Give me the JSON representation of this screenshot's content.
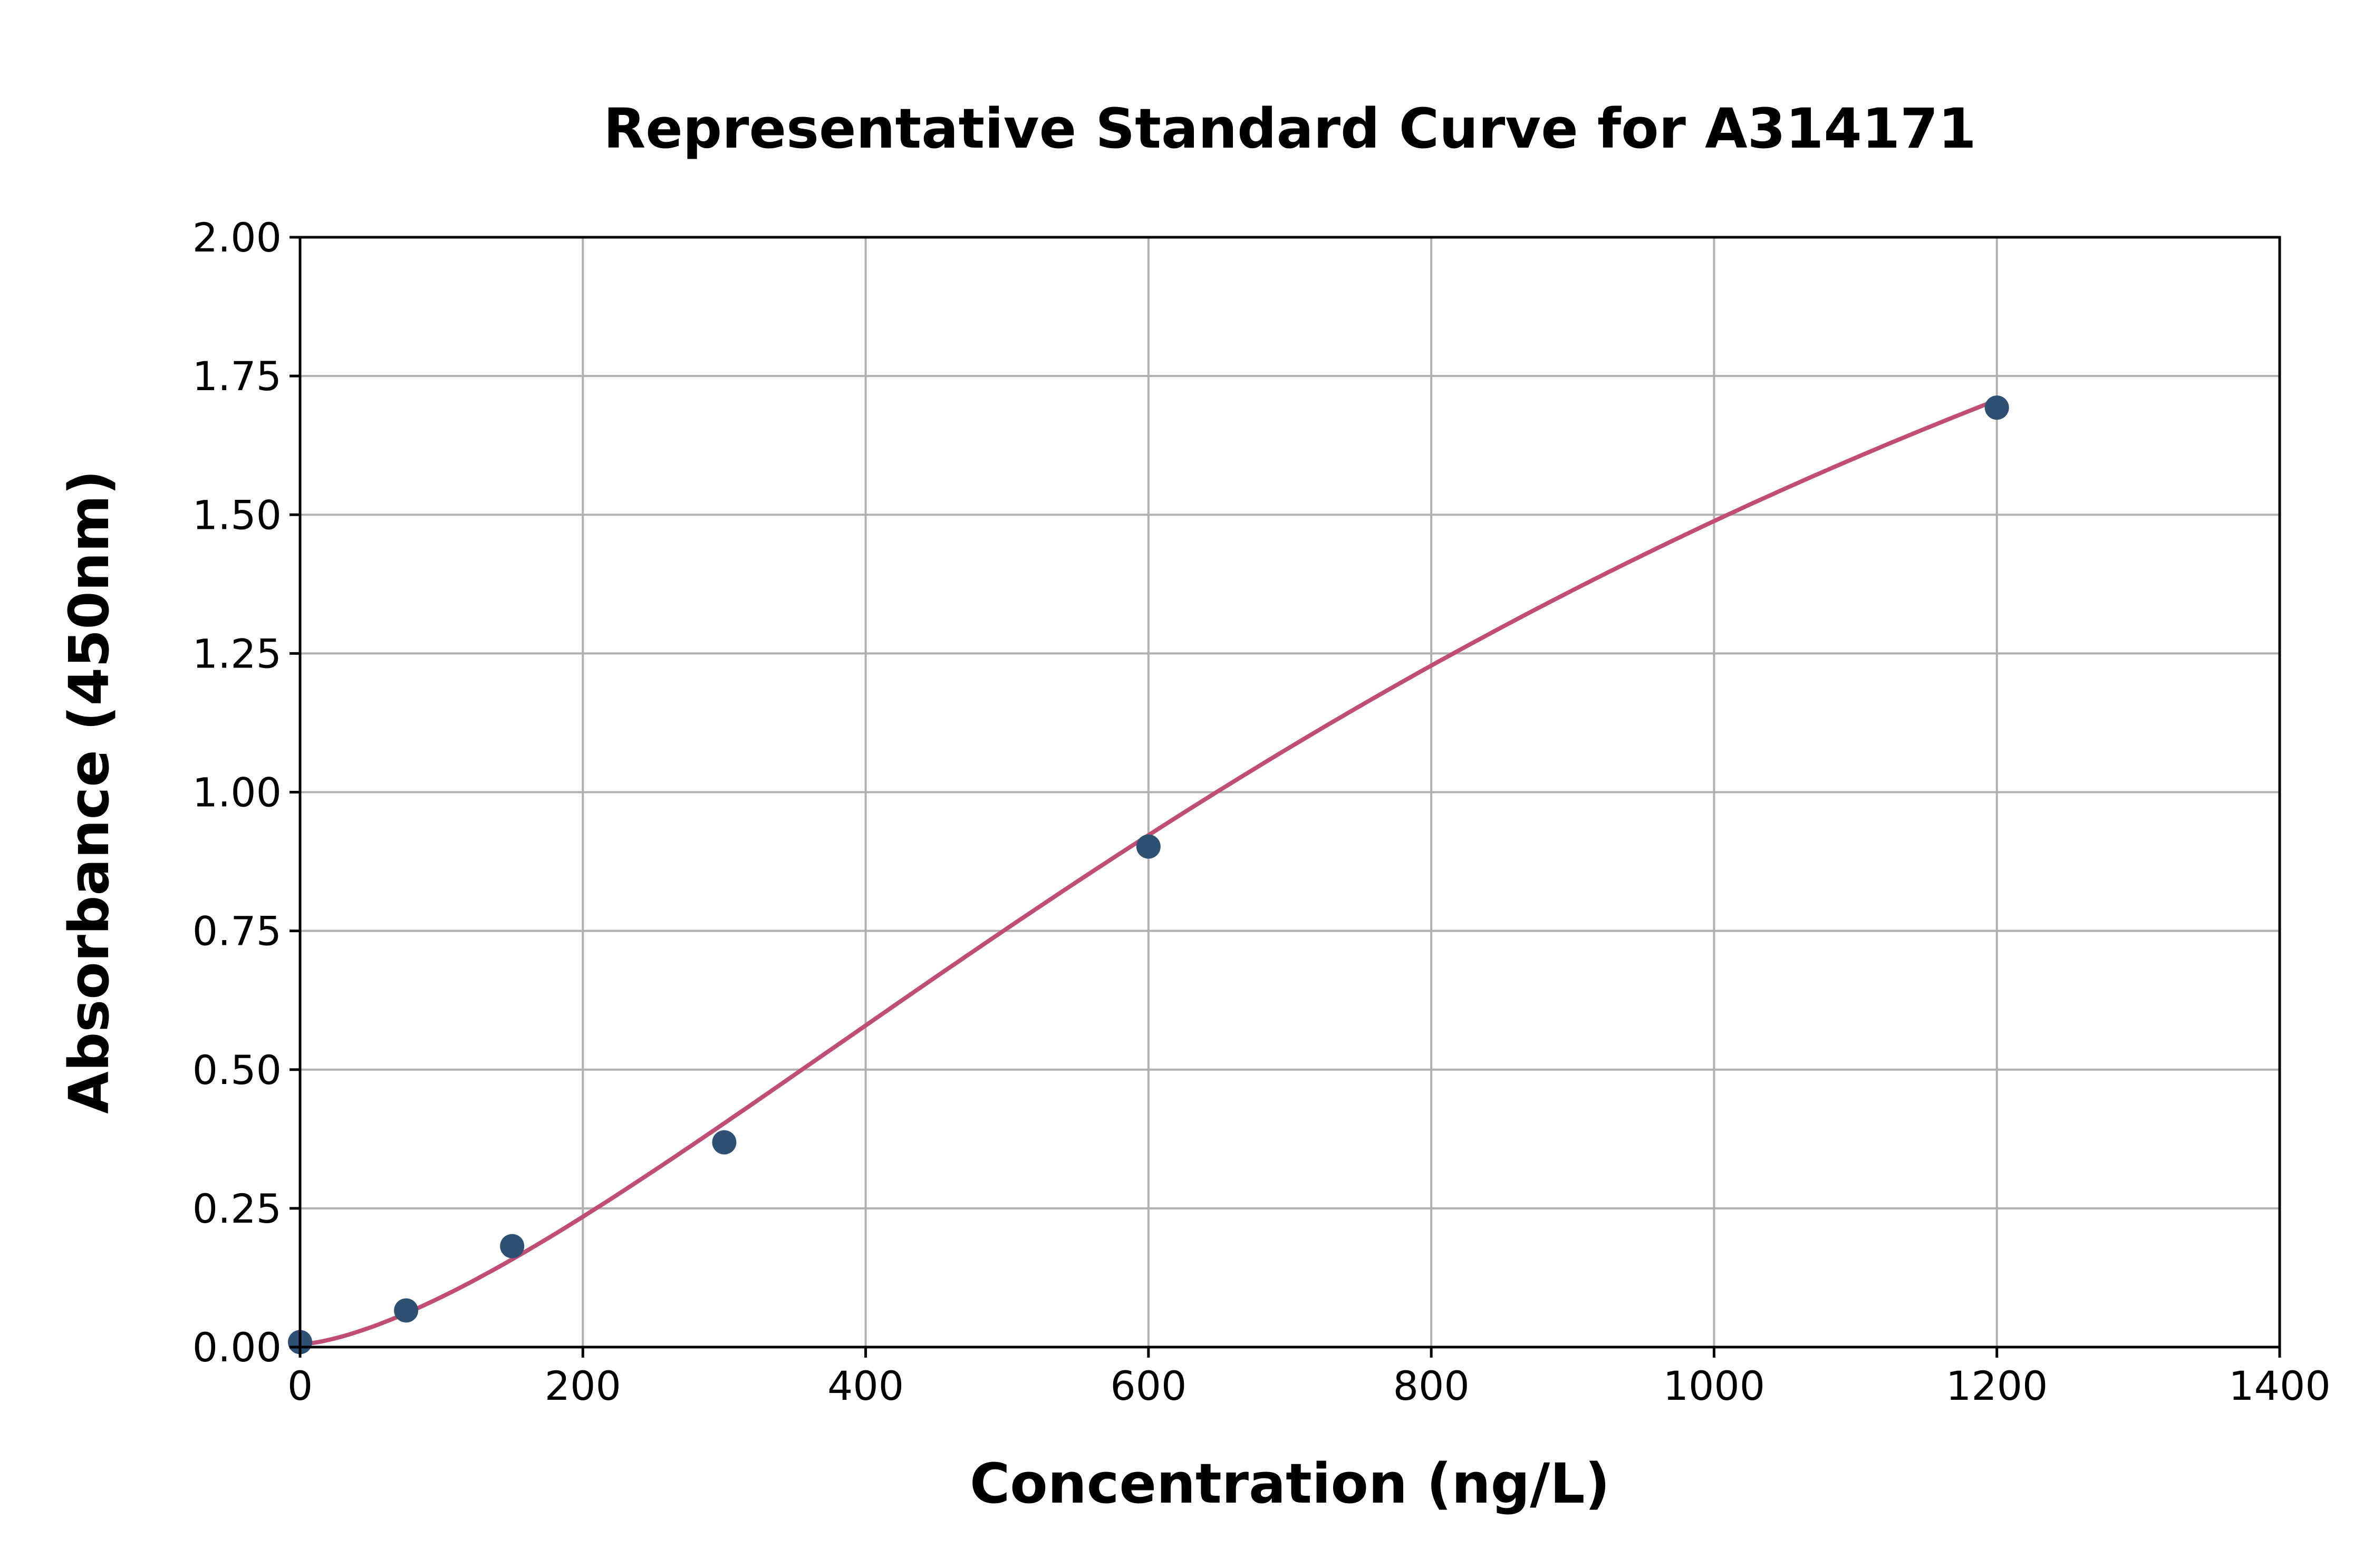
{
  "chart_data": {
    "type": "scatter",
    "title": "Representative Standard Curve for A314171",
    "xlabel": "Concentration (ng/L)",
    "ylabel": "Absorbance (450nm)",
    "xlim": [
      0,
      1400
    ],
    "ylim": [
      0,
      2.0
    ],
    "xticks": [
      "0",
      "200",
      "400",
      "600",
      "800",
      "1000",
      "1200",
      "1400"
    ],
    "yticks": [
      "0.00",
      "0.25",
      "0.50",
      "0.75",
      "1.00",
      "1.25",
      "1.50",
      "1.75",
      "2.00"
    ],
    "grid": true,
    "series": [
      {
        "kind": "points",
        "x": [
          0,
          75,
          150,
          300,
          600,
          1200
        ],
        "y": [
          0.009,
          0.066,
          0.182,
          0.369,
          0.902,
          1.693
        ],
        "color": "#2e5073"
      },
      {
        "kind": "fitted-curve",
        "x_range": [
          0,
          1200
        ],
        "color": "#c04d72"
      }
    ]
  }
}
